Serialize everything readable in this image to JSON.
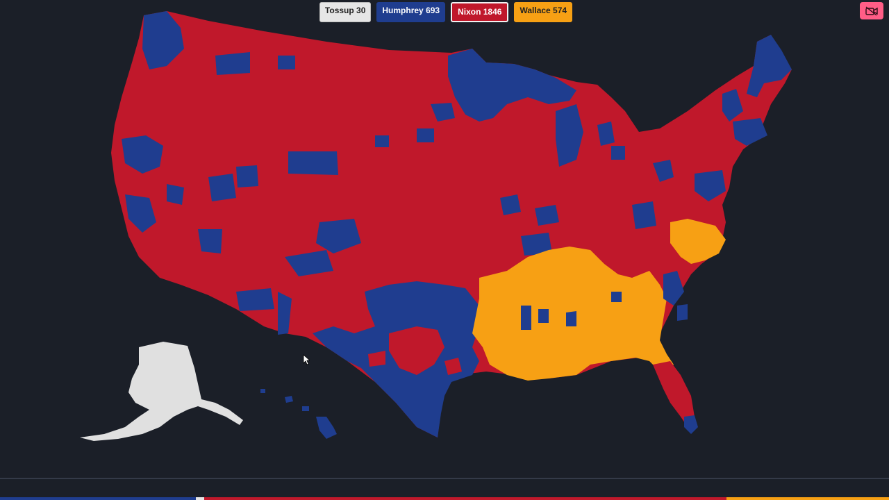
{
  "legend": {
    "tossup": {
      "label": "Tossup 30",
      "color": "#e6e6e6"
    },
    "humphrey": {
      "label": "Humphrey 693",
      "color": "#1f3d8f"
    },
    "nixon": {
      "label": "Nixon 1846",
      "color": "#c0182b"
    },
    "wallace": {
      "label": "Wallace 574",
      "color": "#f7a014"
    }
  },
  "counts": {
    "tossup": 30,
    "humphrey": 693,
    "nixon": 1846,
    "wallace": 574
  },
  "camera_button": {
    "icon": "camera-off-icon",
    "color": "#ff5d86"
  },
  "map": {
    "background": "#1b1f28",
    "alaska_color": "#e0e0e0"
  }
}
